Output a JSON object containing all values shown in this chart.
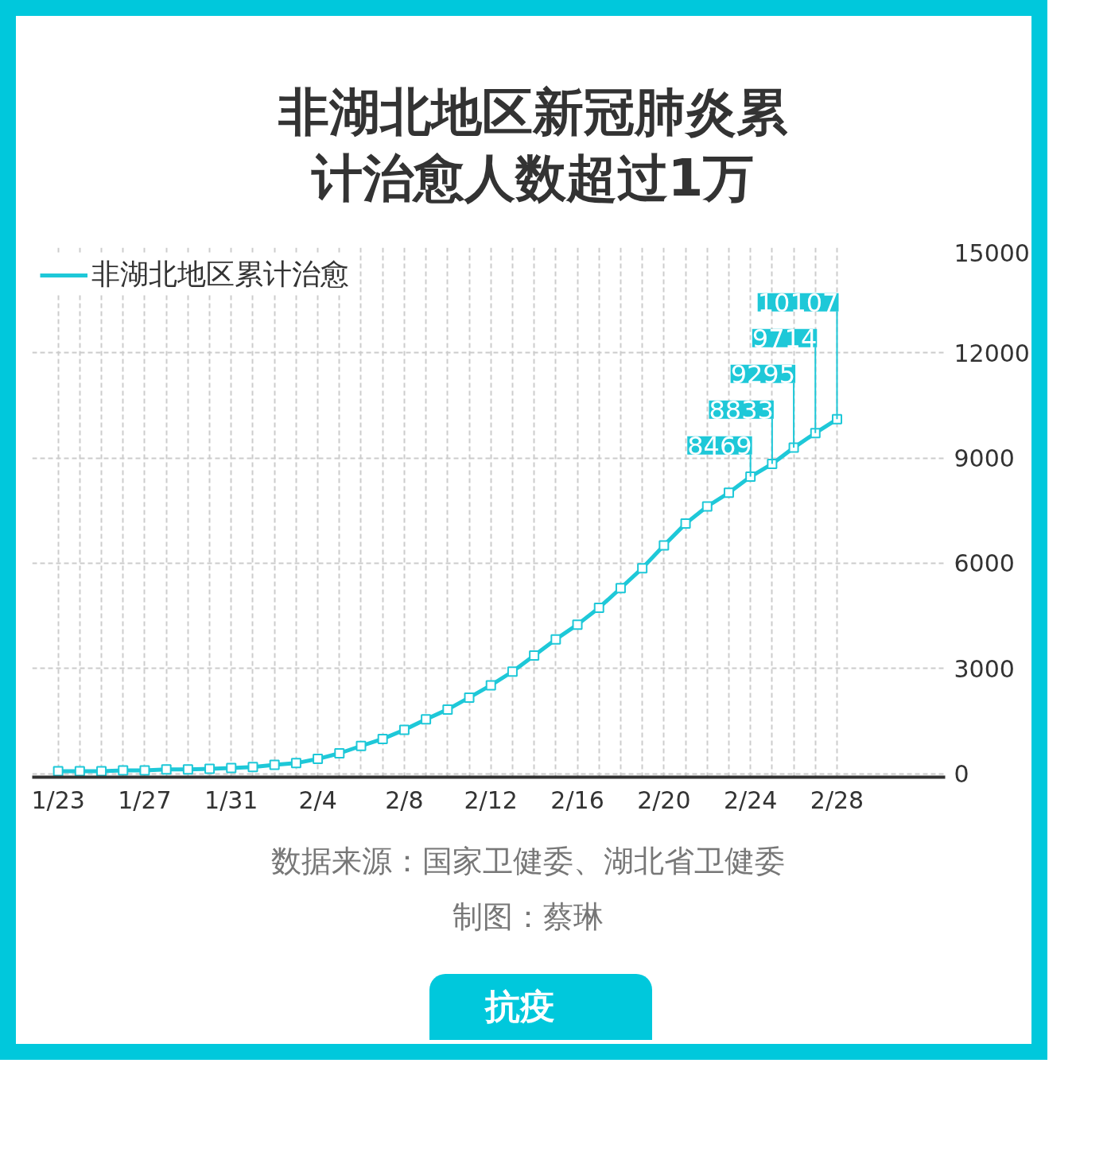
{
  "chart_data": {
    "type": "line",
    "title": "非湖北地区新冠肺炎累计治愈人数超过1万",
    "categories": [
      "1/23",
      null,
      null,
      null,
      "1/27",
      null,
      null,
      null,
      "1/31",
      null,
      null,
      null,
      "2/4",
      null,
      null,
      null,
      "2/8",
      null,
      null,
      null,
      "2/12",
      null,
      null,
      null,
      "2/16",
      null,
      null,
      null,
      "2/20",
      null,
      null,
      null,
      "2/24",
      null,
      null,
      null,
      "2/28"
    ],
    "series": [
      {
        "name": "非湖北地区累计治愈",
        "color": "#1ec8d8",
        "values": [
          70,
          70,
          70,
          90,
          90,
          120,
          120,
          140,
          160,
          190,
          250,
          300,
          420,
          580,
          790,
          990,
          1250,
          1550,
          1830,
          2170,
          2520,
          2910,
          3370,
          3830,
          4250,
          4730,
          5290,
          5860,
          6510,
          7130,
          7620,
          8010,
          8469,
          8833,
          9295,
          9714,
          10107
        ],
        "value_labels": [
          null,
          null,
          null,
          null,
          null,
          null,
          null,
          null,
          null,
          null,
          null,
          null,
          null,
          null,
          null,
          null,
          null,
          null,
          null,
          null,
          null,
          null,
          null,
          null,
          null,
          null,
          null,
          null,
          null,
          null,
          null,
          null,
          "8469",
          "8833",
          "9295",
          "9714",
          "10107"
        ]
      }
    ],
    "ylim": [
      -100,
      15000
    ],
    "yticks": [
      0,
      3000,
      6000,
      9000,
      12000,
      15000
    ],
    "grid": true,
    "legend": "top left",
    "marker": "square",
    "line_style": "solid",
    "annotations": [
      "数据来源：国家卫健委、湖北省卫健委",
      "制图：蔡琳",
      "抗疫"
    ]
  }
}
